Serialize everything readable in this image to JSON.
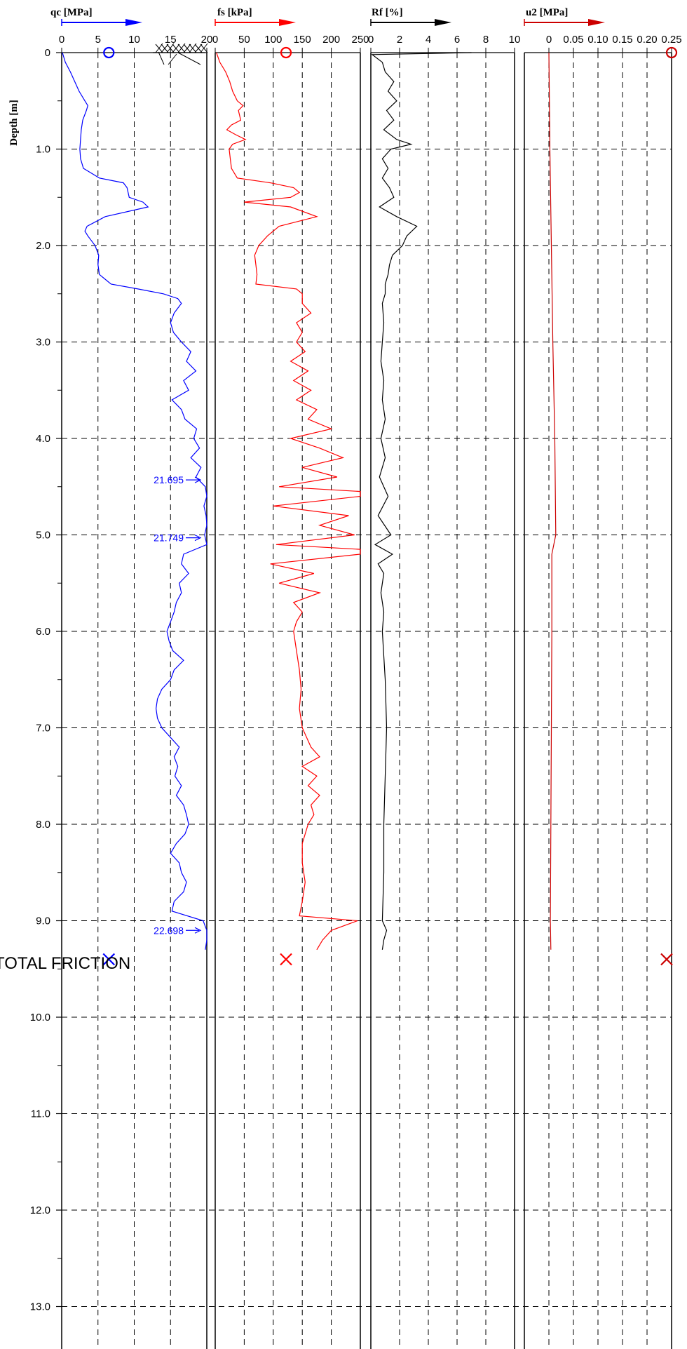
{
  "chart_data": {
    "type": "line",
    "y_axis": {
      "label": "Depth [m]",
      "range": [
        0,
        13.9
      ],
      "tick_labels": [
        "0",
        "1.0",
        "2.0",
        "3.0",
        "4.0",
        "5.0",
        "6.0",
        "7.0",
        "8.0",
        "9.0",
        "10.0",
        "11.0",
        "12.0",
        "13.0"
      ],
      "tick_values": [
        0,
        1,
        2,
        3,
        4,
        5,
        6,
        7,
        8,
        9,
        10,
        11,
        12,
        13
      ],
      "grid": true
    },
    "panels": [
      {
        "key": "qc",
        "title": "qc [MPa]",
        "color": "#0000ff",
        "xlim": [
          0,
          20
        ],
        "tick_values": [
          0,
          5,
          10,
          15,
          20
        ],
        "tick_labels": [
          "0",
          "5",
          "10",
          "15",
          "20"
        ],
        "legend_marker": "circle",
        "legend_marker_value": 6.5,
        "end_marker": "x",
        "end_marker_value": 6.5,
        "end_marker_depth": 9.4,
        "profile": [
          [
            0.0,
            0.1
          ],
          [
            0.1,
            0.5
          ],
          [
            0.2,
            1.2
          ],
          [
            0.3,
            1.8
          ],
          [
            0.4,
            2.4
          ],
          [
            0.5,
            3.2
          ],
          [
            0.55,
            3.6
          ],
          [
            0.6,
            3.4
          ],
          [
            0.7,
            2.9
          ],
          [
            0.8,
            2.7
          ],
          [
            0.9,
            2.6
          ],
          [
            1.0,
            2.5
          ],
          [
            1.1,
            2.6
          ],
          [
            1.2,
            3.0
          ],
          [
            1.3,
            5.2
          ],
          [
            1.35,
            8.5
          ],
          [
            1.4,
            9.0
          ],
          [
            1.5,
            9.3
          ],
          [
            1.55,
            11.2
          ],
          [
            1.6,
            11.9
          ],
          [
            1.7,
            6.0
          ],
          [
            1.8,
            3.5
          ],
          [
            1.85,
            3.2
          ],
          [
            1.9,
            3.6
          ],
          [
            2.0,
            4.6
          ],
          [
            2.1,
            5.1
          ],
          [
            2.2,
            5.0
          ],
          [
            2.3,
            5.2
          ],
          [
            2.35,
            6.0
          ],
          [
            2.4,
            6.8
          ],
          [
            2.45,
            10.5
          ],
          [
            2.5,
            14.0
          ],
          [
            2.55,
            16.0
          ],
          [
            2.6,
            16.5
          ],
          [
            2.7,
            15.5
          ],
          [
            2.8,
            15.0
          ],
          [
            2.9,
            15.4
          ],
          [
            3.0,
            16.5
          ],
          [
            3.1,
            17.8
          ],
          [
            3.2,
            17.2
          ],
          [
            3.3,
            18.5
          ],
          [
            3.4,
            16.8
          ],
          [
            3.5,
            17.5
          ],
          [
            3.6,
            15.2
          ],
          [
            3.7,
            16.5
          ],
          [
            3.8,
            17.0
          ],
          [
            3.9,
            18.6
          ],
          [
            4.0,
            18.2
          ],
          [
            4.1,
            19.0
          ],
          [
            4.2,
            17.8
          ],
          [
            4.3,
            19.2
          ],
          [
            4.4,
            18.5
          ],
          [
            4.5,
            19.8
          ],
          [
            4.6,
            20.0
          ],
          [
            4.7,
            19.6
          ],
          [
            4.8,
            19.9
          ],
          [
            4.9,
            20.0
          ],
          [
            5.0,
            19.7
          ],
          [
            5.1,
            20.0
          ],
          [
            5.2,
            16.8
          ],
          [
            5.3,
            16.5
          ],
          [
            5.4,
            17.5
          ],
          [
            5.5,
            16.2
          ],
          [
            5.6,
            16.5
          ],
          [
            5.7,
            15.8
          ],
          [
            5.8,
            15.5
          ],
          [
            5.9,
            15.0
          ],
          [
            6.0,
            14.5
          ],
          [
            6.1,
            14.8
          ],
          [
            6.2,
            15.3
          ],
          [
            6.3,
            16.8
          ],
          [
            6.4,
            15.5
          ],
          [
            6.5,
            15.0
          ],
          [
            6.6,
            13.8
          ],
          [
            6.7,
            13.2
          ],
          [
            6.8,
            13.0
          ],
          [
            6.9,
            13.2
          ],
          [
            7.0,
            13.8
          ],
          [
            7.1,
            15.0
          ],
          [
            7.2,
            16.2
          ],
          [
            7.3,
            15.5
          ],
          [
            7.4,
            16.0
          ],
          [
            7.5,
            15.6
          ],
          [
            7.6,
            16.5
          ],
          [
            7.7,
            15.8
          ],
          [
            7.8,
            16.8
          ],
          [
            7.9,
            17.2
          ],
          [
            8.0,
            17.5
          ],
          [
            8.1,
            17.0
          ],
          [
            8.2,
            15.8
          ],
          [
            8.3,
            15.0
          ],
          [
            8.4,
            16.2
          ],
          [
            8.5,
            16.5
          ],
          [
            8.6,
            17.2
          ],
          [
            8.7,
            16.8
          ],
          [
            8.8,
            15.5
          ],
          [
            8.9,
            15.2
          ],
          [
            9.0,
            19.5
          ],
          [
            9.1,
            20.0
          ],
          [
            9.2,
            20.0
          ],
          [
            9.3,
            19.8
          ]
        ],
        "offscale_labels": [
          {
            "depth": 4.43,
            "value": "21.695"
          },
          {
            "depth": 5.03,
            "value": "21.749"
          },
          {
            "depth": 9.1,
            "value": "22.698"
          }
        ]
      },
      {
        "key": "fs",
        "title": "fs [kPa]",
        "color": "#ff0000",
        "xlim": [
          0,
          250
        ],
        "tick_values": [
          0,
          50,
          100,
          150,
          200,
          250
        ],
        "tick_labels": [
          "0",
          "50",
          "100",
          "150",
          "200",
          "250"
        ],
        "legend_marker": "circle",
        "legend_marker_value": 122,
        "end_marker": "x",
        "end_marker_value": 122,
        "end_marker_depth": 9.4,
        "profile": [
          [
            0.0,
            2
          ],
          [
            0.1,
            8
          ],
          [
            0.2,
            18
          ],
          [
            0.3,
            25
          ],
          [
            0.4,
            30
          ],
          [
            0.5,
            38
          ],
          [
            0.55,
            48
          ],
          [
            0.6,
            40
          ],
          [
            0.7,
            44
          ],
          [
            0.75,
            28
          ],
          [
            0.8,
            20
          ],
          [
            0.85,
            35
          ],
          [
            0.9,
            52
          ],
          [
            0.95,
            30
          ],
          [
            1.0,
            24
          ],
          [
            1.1,
            26
          ],
          [
            1.2,
            28
          ],
          [
            1.3,
            38
          ],
          [
            1.35,
            95
          ],
          [
            1.4,
            135
          ],
          [
            1.45,
            145
          ],
          [
            1.5,
            130
          ],
          [
            1.55,
            50
          ],
          [
            1.6,
            130
          ],
          [
            1.7,
            175
          ],
          [
            1.8,
            110
          ],
          [
            1.9,
            90
          ],
          [
            2.0,
            75
          ],
          [
            2.1,
            68
          ],
          [
            2.2,
            70
          ],
          [
            2.3,
            72
          ],
          [
            2.4,
            70
          ],
          [
            2.45,
            140
          ],
          [
            2.5,
            150
          ],
          [
            2.6,
            150
          ],
          [
            2.7,
            165
          ],
          [
            2.8,
            140
          ],
          [
            2.9,
            150
          ],
          [
            3.0,
            140
          ],
          [
            3.1,
            155
          ],
          [
            3.2,
            130
          ],
          [
            3.3,
            160
          ],
          [
            3.4,
            135
          ],
          [
            3.5,
            165
          ],
          [
            3.6,
            140
          ],
          [
            3.7,
            175
          ],
          [
            3.8,
            160
          ],
          [
            3.9,
            200
          ],
          [
            4.0,
            130
          ],
          [
            4.1,
            180
          ],
          [
            4.2,
            220
          ],
          [
            4.3,
            150
          ],
          [
            4.4,
            210
          ],
          [
            4.5,
            110
          ],
          [
            4.55,
            250
          ],
          [
            4.6,
            250
          ],
          [
            4.7,
            100
          ],
          [
            4.8,
            230
          ],
          [
            4.9,
            180
          ],
          [
            5.0,
            240
          ],
          [
            5.1,
            105
          ],
          [
            5.15,
            250
          ],
          [
            5.2,
            250
          ],
          [
            5.3,
            95
          ],
          [
            5.4,
            170
          ],
          [
            5.5,
            110
          ],
          [
            5.6,
            180
          ],
          [
            5.7,
            135
          ],
          [
            5.8,
            150
          ],
          [
            5.9,
            140
          ],
          [
            6.0,
            135
          ],
          [
            6.2,
            140
          ],
          [
            6.4,
            145
          ],
          [
            6.6,
            148
          ],
          [
            6.8,
            145
          ],
          [
            7.0,
            150
          ],
          [
            7.2,
            165
          ],
          [
            7.3,
            180
          ],
          [
            7.4,
            150
          ],
          [
            7.5,
            175
          ],
          [
            7.6,
            160
          ],
          [
            7.7,
            180
          ],
          [
            7.8,
            165
          ],
          [
            7.9,
            170
          ],
          [
            8.0,
            160
          ],
          [
            8.2,
            150
          ],
          [
            8.4,
            150
          ],
          [
            8.6,
            155
          ],
          [
            8.8,
            150
          ],
          [
            8.95,
            145
          ],
          [
            9.0,
            245
          ],
          [
            9.1,
            200
          ],
          [
            9.2,
            185
          ],
          [
            9.3,
            175
          ]
        ]
      },
      {
        "key": "rf",
        "title": "Rf [%]",
        "color": "#000000",
        "xlim": [
          0,
          10
        ],
        "tick_values": [
          0,
          2,
          4,
          6,
          8,
          10
        ],
        "tick_labels": [
          "0",
          "2",
          "4",
          "6",
          "8",
          "10"
        ],
        "profile": [
          [
            0.0,
            7.0
          ],
          [
            0.02,
            0.1
          ],
          [
            0.1,
            0.8
          ],
          [
            0.2,
            1.0
          ],
          [
            0.3,
            1.6
          ],
          [
            0.4,
            1.2
          ],
          [
            0.5,
            1.8
          ],
          [
            0.6,
            1.1
          ],
          [
            0.7,
            1.6
          ],
          [
            0.8,
            0.9
          ],
          [
            0.9,
            1.8
          ],
          [
            0.95,
            2.8
          ],
          [
            1.0,
            1.4
          ],
          [
            1.1,
            0.8
          ],
          [
            1.2,
            1.2
          ],
          [
            1.3,
            0.8
          ],
          [
            1.4,
            1.3
          ],
          [
            1.5,
            1.6
          ],
          [
            1.6,
            0.6
          ],
          [
            1.7,
            1.8
          ],
          [
            1.8,
            3.2
          ],
          [
            1.9,
            2.5
          ],
          [
            2.0,
            2.2
          ],
          [
            2.1,
            1.5
          ],
          [
            2.2,
            1.3
          ],
          [
            2.3,
            1.2
          ],
          [
            2.4,
            1.0
          ],
          [
            2.5,
            1.0
          ],
          [
            2.6,
            0.8
          ],
          [
            2.8,
            0.9
          ],
          [
            3.0,
            0.8
          ],
          [
            3.2,
            0.7
          ],
          [
            3.4,
            0.9
          ],
          [
            3.6,
            0.8
          ],
          [
            3.8,
            1.0
          ],
          [
            4.0,
            0.7
          ],
          [
            4.2,
            1.0
          ],
          [
            4.4,
            0.6
          ],
          [
            4.6,
            1.2
          ],
          [
            4.8,
            0.5
          ],
          [
            5.0,
            1.4
          ],
          [
            5.1,
            0.3
          ],
          [
            5.2,
            1.5
          ],
          [
            5.3,
            0.5
          ],
          [
            5.4,
            0.9
          ],
          [
            5.6,
            0.7
          ],
          [
            5.8,
            0.9
          ],
          [
            6.0,
            0.8
          ],
          [
            6.5,
            1.0
          ],
          [
            7.0,
            1.1
          ],
          [
            7.5,
            1.0
          ],
          [
            8.0,
            0.9
          ],
          [
            8.5,
            0.9
          ],
          [
            9.0,
            0.8
          ],
          [
            9.1,
            1.1
          ],
          [
            9.2,
            0.9
          ],
          [
            9.3,
            0.8
          ]
        ]
      },
      {
        "key": "u2",
        "title": "u2 [MPa]",
        "color": "#cc0000",
        "xlim": [
          -0.05,
          0.25
        ],
        "tick_values": [
          0,
          0.05,
          0.1,
          0.15,
          0.2,
          0.25
        ],
        "tick_labels": [
          "0",
          "0.05",
          "0.10",
          "0.15",
          "0.20",
          "0.25"
        ],
        "legend_marker": "circle",
        "legend_marker_value": 0.25,
        "end_marker": "x",
        "end_marker_value": 0.24,
        "end_marker_depth": 9.4,
        "profile": [
          [
            0.0,
            0.0
          ],
          [
            1.0,
            0.002
          ],
          [
            2.0,
            0.005
          ],
          [
            3.0,
            0.008
          ],
          [
            4.0,
            0.012
          ],
          [
            4.5,
            0.013
          ],
          [
            5.0,
            0.014
          ],
          [
            5.2,
            0.006
          ],
          [
            6.0,
            0.006
          ],
          [
            7.0,
            0.005
          ],
          [
            8.0,
            0.004
          ],
          [
            9.0,
            0.003
          ],
          [
            9.3,
            0.004
          ]
        ]
      }
    ],
    "annotation": "TOTAL FRICTION"
  }
}
